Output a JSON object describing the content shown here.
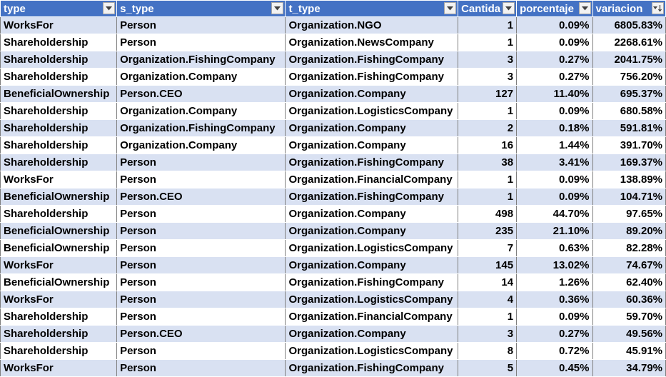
{
  "columns": [
    {
      "label": "type",
      "sort": "none"
    },
    {
      "label": "s_type",
      "sort": "none"
    },
    {
      "label": "t_type",
      "sort": "none"
    },
    {
      "label": "Cantida",
      "sort": "none"
    },
    {
      "label": "porcentaje",
      "sort": "none"
    },
    {
      "label": "variacion",
      "sort": "descending"
    }
  ],
  "rows": [
    [
      "WorksFor",
      "Person",
      "Organization.NGO",
      "1",
      "0.09%",
      "6805.83%"
    ],
    [
      "Shareholdership",
      "Person",
      "Organization.NewsCompany",
      "1",
      "0.09%",
      "2268.61%"
    ],
    [
      "Shareholdership",
      "Organization.FishingCompany",
      "Organization.FishingCompany",
      "3",
      "0.27%",
      "2041.75%"
    ],
    [
      "Shareholdership",
      "Organization.Company",
      "Organization.FishingCompany",
      "3",
      "0.27%",
      "756.20%"
    ],
    [
      "BeneficialOwnership",
      "Person.CEO",
      "Organization.Company",
      "127",
      "11.40%",
      "695.37%"
    ],
    [
      "Shareholdership",
      "Organization.Company",
      "Organization.LogisticsCompany",
      "1",
      "0.09%",
      "680.58%"
    ],
    [
      "Shareholdership",
      "Organization.FishingCompany",
      "Organization.Company",
      "2",
      "0.18%",
      "591.81%"
    ],
    [
      "Shareholdership",
      "Organization.Company",
      "Organization.Company",
      "16",
      "1.44%",
      "391.70%"
    ],
    [
      "Shareholdership",
      "Person",
      "Organization.FishingCompany",
      "38",
      "3.41%",
      "169.37%"
    ],
    [
      "WorksFor",
      "Person",
      "Organization.FinancialCompany",
      "1",
      "0.09%",
      "138.89%"
    ],
    [
      "BeneficialOwnership",
      "Person.CEO",
      "Organization.FishingCompany",
      "1",
      "0.09%",
      "104.71%"
    ],
    [
      "Shareholdership",
      "Person",
      "Organization.Company",
      "498",
      "44.70%",
      "97.65%"
    ],
    [
      "BeneficialOwnership",
      "Person",
      "Organization.Company",
      "235",
      "21.10%",
      "89.20%"
    ],
    [
      "BeneficialOwnership",
      "Person",
      "Organization.LogisticsCompany",
      "7",
      "0.63%",
      "82.28%"
    ],
    [
      "WorksFor",
      "Person",
      "Organization.Company",
      "145",
      "13.02%",
      "74.67%"
    ],
    [
      "BeneficialOwnership",
      "Person",
      "Organization.FishingCompany",
      "14",
      "1.26%",
      "62.40%"
    ],
    [
      "WorksFor",
      "Person",
      "Organization.LogisticsCompany",
      "4",
      "0.36%",
      "60.36%"
    ],
    [
      "Shareholdership",
      "Person",
      "Organization.FinancialCompany",
      "1",
      "0.09%",
      "59.70%"
    ],
    [
      "Shareholdership",
      "Person.CEO",
      "Organization.Company",
      "3",
      "0.27%",
      "49.56%"
    ],
    [
      "Shareholdership",
      "Person",
      "Organization.LogisticsCompany",
      "8",
      "0.72%",
      "45.91%"
    ],
    [
      "WorksFor",
      "Person",
      "Organization.FishingCompany",
      "5",
      "0.45%",
      "34.79%"
    ]
  ],
  "colors": {
    "header_bg": "#4472c4",
    "header_text": "#ffffff",
    "band_row_bg": "#d9e1f2",
    "plain_row_bg": "#ffffff"
  },
  "icons": {
    "filter": "dropdown-arrow-icon",
    "sort_descending": "sort-descending-filter-icon"
  }
}
